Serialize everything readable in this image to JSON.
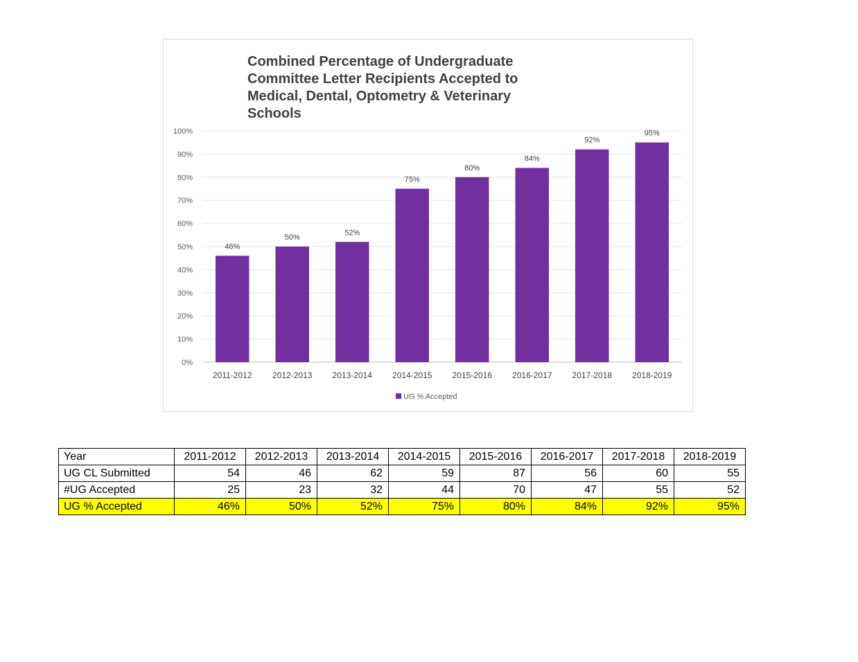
{
  "chart_data": {
    "type": "bar",
    "title_lines": [
      "Combined Percentage of Undergraduate",
      "Committee Letter Recipients Accepted to",
      "Medical, Dental, Optometry & Veterinary",
      "Schools"
    ],
    "categories": [
      "2011-2012",
      "2012-2013",
      "2013-2014",
      "2014-2015",
      "2015-2016",
      "2016-2017",
      "2017-2018",
      "2018-2019"
    ],
    "series": [
      {
        "name": "UG % Accepted",
        "values": [
          46,
          50,
          52,
          75,
          80,
          84,
          92,
          95
        ],
        "labels": [
          "46%",
          "50%",
          "52%",
          "75%",
          "80%",
          "84%",
          "92%",
          "95%"
        ],
        "color": "#7030a0"
      }
    ],
    "y_ticks": [
      "0%",
      "10%",
      "20%",
      "30%",
      "40%",
      "50%",
      "60%",
      "70%",
      "80%",
      "90%",
      "100%"
    ],
    "ylim": [
      0,
      100
    ],
    "grid": true,
    "legend_position": "bottom",
    "legend_label": "UG % Accepted"
  },
  "table": {
    "header": {
      "label": "Year",
      "values": [
        "2011-2012",
        "2012-2013",
        "2013-2014",
        "2014-2015",
        "2015-2016",
        "2016-2017",
        "2017-2018",
        "2018-2019"
      ]
    },
    "rows": [
      {
        "label": "UG CL Submitted",
        "values": [
          "54",
          "46",
          "62",
          "59",
          "87",
          "56",
          "60",
          "55"
        ]
      },
      {
        "label": "#UG Accepted",
        "values": [
          "25",
          "23",
          "32",
          "44",
          "70",
          "47",
          "55",
          "52"
        ]
      },
      {
        "label": "UG % Accepted",
        "values": [
          "46%",
          "50%",
          "52%",
          "75%",
          "80%",
          "84%",
          "92%",
          "95%"
        ],
        "highlight_color": "#ffff00"
      }
    ]
  }
}
